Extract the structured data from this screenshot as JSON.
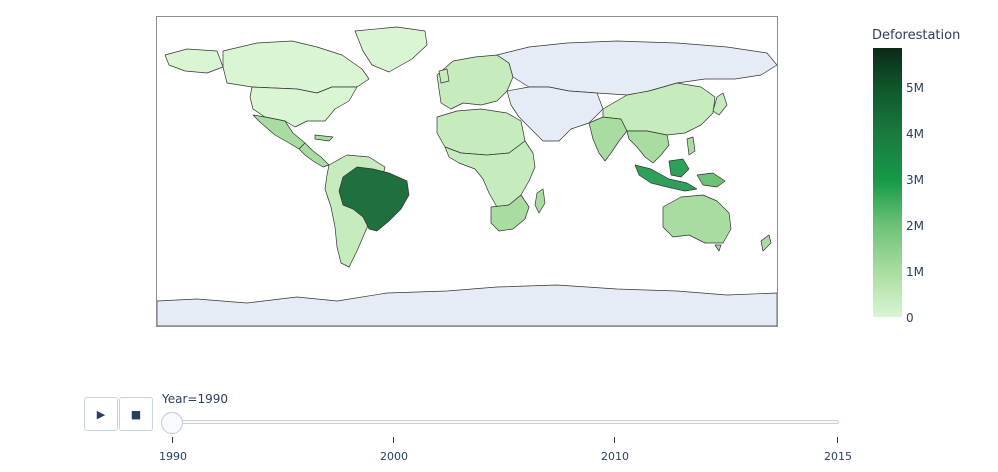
{
  "legend": {
    "title": "Deforestation",
    "ticks": [
      "5M",
      "4M",
      "3M",
      "2M",
      "1M",
      "0"
    ]
  },
  "slider": {
    "label": "Year=1990",
    "ticks": [
      "1990",
      "2000",
      "2010",
      "2015"
    ],
    "current_year": 1990,
    "range": [
      1990,
      2015
    ]
  },
  "controls": {
    "play_icon": "▶",
    "stop_icon": "■"
  },
  "colors": {
    "no_data": "#e5ecf6",
    "lowest": "#d9f5d2",
    "low": "#c6ebbd",
    "light": "#a8dca0",
    "mid": "#6ec276",
    "high": "#2ea05a",
    "very_high": "#1f6f3f",
    "border": "#333333"
  },
  "map": {
    "regions": [
      {
        "name": "Canada",
        "level": "lowest"
      },
      {
        "name": "United States",
        "level": "lowest"
      },
      {
        "name": "Greenland",
        "level": "lowest"
      },
      {
        "name": "Mexico",
        "level": "light"
      },
      {
        "name": "Central America",
        "level": "light"
      },
      {
        "name": "Brazil",
        "level": "very_high"
      },
      {
        "name": "South America",
        "level": "low"
      },
      {
        "name": "Europe",
        "level": "low"
      },
      {
        "name": "Russia",
        "level": "no_data"
      },
      {
        "name": "North Africa",
        "level": "low"
      },
      {
        "name": "Central Africa",
        "level": "low"
      },
      {
        "name": "Southern Africa",
        "level": "light"
      },
      {
        "name": "Middle East",
        "level": "no_data"
      },
      {
        "name": "India",
        "level": "light"
      },
      {
        "name": "China",
        "level": "low"
      },
      {
        "name": "Southeast Asia",
        "level": "light"
      },
      {
        "name": "Indonesia",
        "level": "high"
      },
      {
        "name": "Papua New Guinea",
        "level": "mid"
      },
      {
        "name": "Australia",
        "level": "light"
      },
      {
        "name": "Antarctica",
        "level": "no_data"
      }
    ]
  }
}
